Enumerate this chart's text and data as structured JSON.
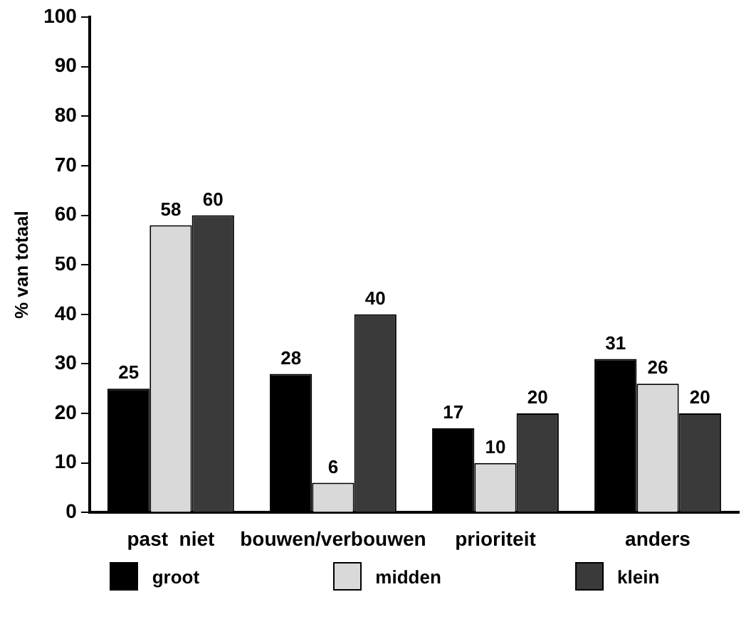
{
  "chart_data": {
    "type": "bar",
    "ylabel": "% van totaal",
    "categories": [
      "past  niet",
      "bouwen/verbouwen",
      "prioriteit",
      "anders"
    ],
    "series": [
      {
        "name": "groot",
        "color": "#000000",
        "values": [
          25,
          28,
          17,
          31
        ]
      },
      {
        "name": "midden",
        "color": "#d9d9d9",
        "values": [
          58,
          6,
          10,
          26
        ]
      },
      {
        "name": "klein",
        "color": "#3a3a3a",
        "values": [
          60,
          40,
          20,
          20
        ]
      }
    ],
    "ylim": [
      0,
      100
    ],
    "yticks": [
      0,
      10,
      20,
      30,
      40,
      50,
      60,
      70,
      80,
      90,
      100
    ],
    "grid": false,
    "legend": "bottom",
    "data_labels": true
  }
}
